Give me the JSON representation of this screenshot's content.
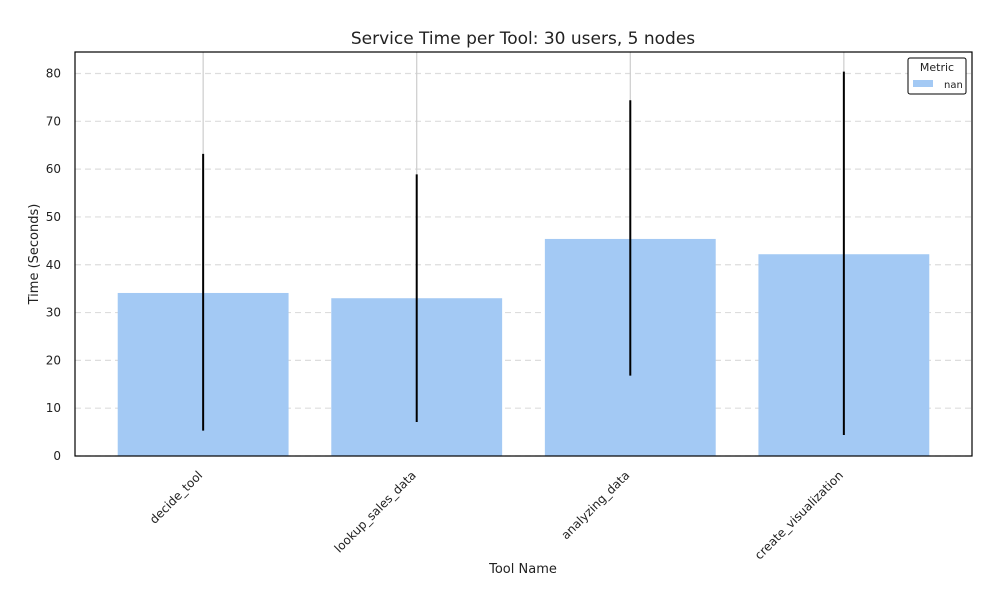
{
  "chart_data": {
    "type": "bar",
    "title": "Service Time per Tool: 30 users, 5 nodes",
    "xlabel": "Tool Name",
    "ylabel": "Time (Seconds)",
    "categories": [
      "decide_tool",
      "lookup_sales_data",
      "analyzing_data",
      "create_visualization"
    ],
    "series": [
      {
        "name": "nan",
        "values": [
          34.1,
          33.0,
          45.4,
          42.2
        ],
        "error_low": [
          5.3,
          7.1,
          16.8,
          4.4
        ],
        "error_high": [
          63.2,
          58.9,
          74.4,
          80.4
        ]
      }
    ],
    "ylim": [
      0,
      84.5
    ],
    "yticks": [
      0,
      10,
      20,
      30,
      40,
      50,
      60,
      70,
      80
    ],
    "grid": true,
    "legend": {
      "title": "Metric",
      "placement": "top-right"
    },
    "colors": {
      "bar": "#a3c9f4",
      "error": "#000000",
      "grid": "#dddddd",
      "background": "#ffffff"
    }
  }
}
